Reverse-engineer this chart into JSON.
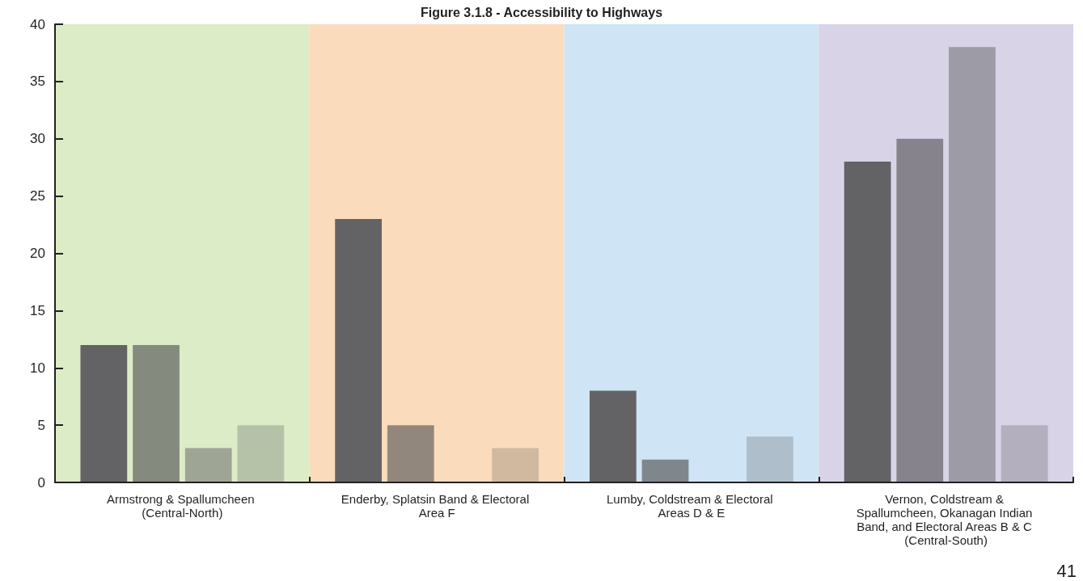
{
  "chart_data": {
    "type": "bar",
    "title": "Figure 3.1.8 - Accessibility to Highways",
    "categories": [
      "Armstrong & Spallumcheen (Central-North)",
      "Enderby, Splatsin Band & Electoral Area F",
      "Lumby, Coldstream & Electoral Areas D & E",
      "Vernon, Coldstream & Spallumcheen, Okanagan Indian Band, and Electoral Areas B & C (Central-South)"
    ],
    "series": [
      {
        "values": [
          12,
          23,
          8,
          28
        ],
        "colors": [
          "#636366",
          "#636366",
          "#636366",
          "#636366"
        ]
      },
      {
        "values": [
          12,
          5,
          2,
          30
        ],
        "colors": [
          "#858a7f",
          "#91877c",
          "#7f878d",
          "#86838d"
        ]
      },
      {
        "values": [
          3,
          null,
          null,
          38
        ],
        "colors": [
          "#9ea595",
          "#91877c",
          "#7f878d",
          "#9d9ba6"
        ]
      },
      {
        "values": [
          5,
          3,
          4,
          5
        ],
        "colors": [
          "#b6c2a8",
          "#d0b99e",
          "#aebfcb",
          "#b3afbf"
        ]
      }
    ],
    "bands": [
      {
        "axis": "x",
        "from": "Armstrong & Spallumcheen (Central-North)",
        "to": "Armstrong & Spallumcheen (Central-North)",
        "color": "#dcecc7"
      },
      {
        "axis": "x",
        "from": "Enderby, Splatsin Band & Electoral Area F",
        "to": "Enderby, Splatsin Band & Electoral Area F",
        "color": "#fadcbc"
      },
      {
        "axis": "x",
        "from": "Lumby, Coldstream & Electoral Areas D & E",
        "to": "Lumby, Coldstream & Electoral Areas D & E",
        "color": "#cfe5f5"
      },
      {
        "axis": "x",
        "from": "Vernon, Coldstream & Spallumcheen, Okanagan Indian Band, and Electoral Areas B & C (Central-South)",
        "to": "Vernon, Coldstream & Spallumcheen, Okanagan Indian Band, and Electoral Areas B & C (Central-South)",
        "color": "#d8d3e7"
      }
    ],
    "ylim": [
      0,
      40
    ],
    "yticks": [
      0,
      5,
      10,
      15,
      20,
      25,
      30,
      35,
      40
    ],
    "grid": false,
    "annotations": [
      "41"
    ]
  }
}
